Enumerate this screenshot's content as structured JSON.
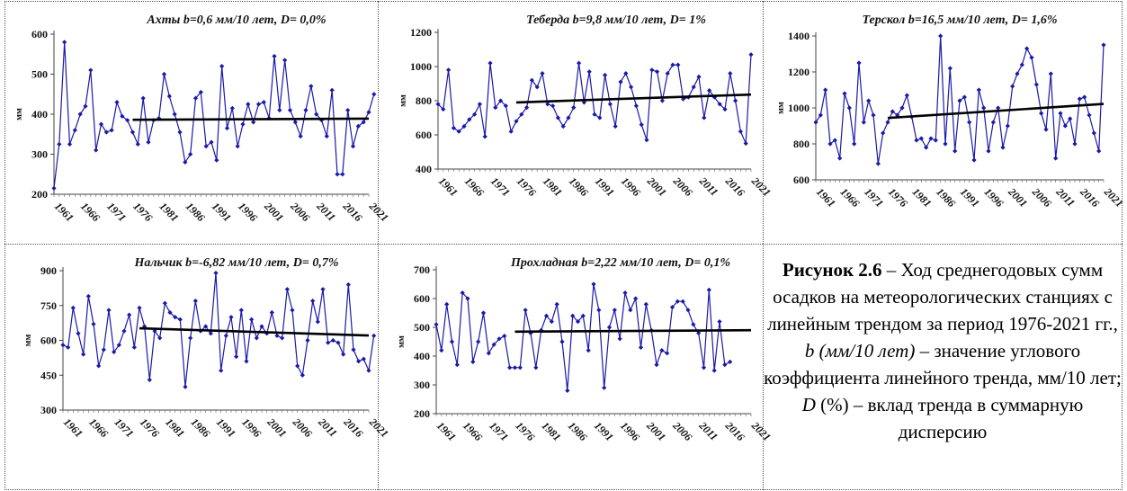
{
  "caption": {
    "label": "Рисунок 2.6",
    "dash": " – ",
    "text1": "Ход среднегодовых сумм осадков на метеорологических станциях с линейным трендом за период 1976-2021 гг., ",
    "b_symbol": "b",
    "b_unit": " (мм/10 лет)",
    "text2": " – значение углового коэффициента линейного тренда, мм/10 лет; ",
    "d_symbol": "D",
    "text3": " (%) – вклад тренда в суммарную дисперсию"
  },
  "colors": {
    "series": "#1a1aa8",
    "trend": "#000000"
  },
  "chart_data": [
    {
      "type": "line",
      "title": "Ахты  b=0,6 мм/10 лет, D= 0,0%",
      "ylabel": "мм",
      "ylim": [
        200,
        600
      ],
      "yticks": [
        200,
        300,
        400,
        500,
        600
      ],
      "xlim": [
        1961,
        2021
      ],
      "xticks": [
        1961,
        1966,
        1971,
        1976,
        1981,
        1986,
        1991,
        1996,
        2001,
        2006,
        2011,
        2016,
        2021
      ],
      "x_start": 1961,
      "values": [
        215,
        325,
        580,
        325,
        360,
        400,
        420,
        510,
        310,
        375,
        355,
        360,
        430,
        395,
        385,
        355,
        325,
        440,
        330,
        385,
        390,
        500,
        445,
        400,
        355,
        280,
        300,
        440,
        455,
        320,
        330,
        285,
        520,
        365,
        415,
        320,
        375,
        425,
        380,
        425,
        430,
        390,
        545,
        410,
        535,
        410,
        380,
        345,
        410,
        470,
        400,
        385,
        345,
        460,
        250,
        250,
        410,
        320,
        370,
        380,
        405,
        450
      ],
      "trend": {
        "x": [
          1976,
          2021
        ],
        "y": [
          386,
          389
        ]
      }
    },
    {
      "type": "line",
      "title": "Теберда  b=9,8 мм/10 лет, D= 1%",
      "ylabel": "мм",
      "ylim": [
        400,
        1200
      ],
      "yticks": [
        400,
        600,
        800,
        1000,
        1200
      ],
      "xlim": [
        1961,
        2021
      ],
      "xticks": [
        1961,
        1966,
        1971,
        1976,
        1981,
        1986,
        1991,
        1996,
        2001,
        2006,
        2011,
        2016,
        2021
      ],
      "x_start": 1961,
      "values": [
        780,
        750,
        980,
        640,
        620,
        650,
        690,
        720,
        780,
        590,
        1020,
        760,
        800,
        770,
        620,
        680,
        720,
        760,
        920,
        880,
        960,
        780,
        770,
        700,
        650,
        700,
        760,
        1020,
        790,
        970,
        720,
        700,
        950,
        780,
        650,
        910,
        960,
        880,
        770,
        660,
        570,
        980,
        970,
        800,
        960,
        1010,
        1010,
        810,
        820,
        880,
        940,
        700,
        860,
        820,
        780,
        750,
        960,
        800,
        620,
        550,
        1070
      ],
      "trend": {
        "x": [
          1976,
          2021
        ],
        "y": [
          790,
          836
        ]
      }
    },
    {
      "type": "line",
      "title": "Терскол b=16,5 мм/10 лет,  D= 1,6%",
      "ylabel": "мм",
      "ylim": [
        600,
        1400
      ],
      "yticks": [
        600,
        800,
        1000,
        1200,
        1400
      ],
      "xlim": [
        1961,
        2021
      ],
      "xticks": [
        1961,
        1966,
        1971,
        1976,
        1981,
        1986,
        1991,
        1996,
        2001,
        2006,
        2011,
        2016,
        2021
      ],
      "x_start": 1961,
      "values": [
        920,
        960,
        1100,
        800,
        820,
        720,
        1080,
        1000,
        800,
        1250,
        920,
        1040,
        960,
        690,
        860,
        920,
        980,
        960,
        1000,
        1070,
        950,
        820,
        830,
        780,
        830,
        820,
        1400,
        800,
        1220,
        760,
        1040,
        1060,
        920,
        710,
        1100,
        1000,
        760,
        920,
        1000,
        780,
        900,
        1120,
        1190,
        1240,
        1330,
        1280,
        1130,
        970,
        880,
        1190,
        720,
        970,
        900,
        940,
        800,
        1050,
        1060,
        960,
        860,
        760,
        1350
      ],
      "trend": {
        "x": [
          1976,
          2021
        ],
        "y": [
          944,
          1022
        ]
      }
    },
    {
      "type": "line",
      "title": "Нальчик   b=-6,82 мм/10 лет, D= 0,7%",
      "ylabel": "мм",
      "ylim": [
        300,
        900
      ],
      "yticks": [
        300,
        450,
        600,
        750,
        900
      ],
      "xlim": [
        1961,
        2021
      ],
      "xticks": [
        1961,
        1966,
        1971,
        1976,
        1981,
        1986,
        1991,
        1996,
        2001,
        2006,
        2011,
        2016,
        2021
      ],
      "x_start": 1961,
      "values": [
        580,
        570,
        740,
        630,
        540,
        790,
        670,
        490,
        560,
        730,
        550,
        580,
        640,
        710,
        570,
        740,
        660,
        430,
        640,
        610,
        760,
        720,
        700,
        690,
        400,
        610,
        770,
        640,
        660,
        630,
        890,
        470,
        620,
        700,
        530,
        730,
        510,
        690,
        610,
        660,
        630,
        720,
        620,
        610,
        820,
        730,
        490,
        450,
        600,
        770,
        680,
        820,
        590,
        600,
        590,
        540,
        840,
        560,
        510,
        520,
        470,
        620
      ],
      "trend": {
        "x": [
          1976,
          2021
        ],
        "y": [
          652,
          621
        ]
      }
    },
    {
      "type": "line",
      "title": "Прохладная   b=2,22 мм/10 лет, D= 0,1%",
      "ylabel": "мм",
      "ylim": [
        200,
        700
      ],
      "yticks": [
        200,
        300,
        400,
        500,
        600,
        700
      ],
      "xlim": [
        1961,
        2021
      ],
      "xticks": [
        1961,
        1966,
        1971,
        1976,
        1981,
        1986,
        1991,
        1996,
        2001,
        2006,
        2011,
        2016,
        2021
      ],
      "x_start": 1961,
      "values": [
        510,
        420,
        580,
        450,
        370,
        620,
        600,
        380,
        450,
        550,
        410,
        440,
        460,
        470,
        360,
        360,
        360,
        560,
        480,
        360,
        490,
        540,
        520,
        580,
        450,
        280,
        540,
        520,
        540,
        420,
        650,
        560,
        290,
        500,
        560,
        460,
        620,
        560,
        600,
        430,
        580,
        490,
        370,
        420,
        410,
        570,
        590,
        590,
        560,
        510,
        480,
        360,
        630,
        350,
        520,
        370,
        380
      ],
      "trend": {
        "x": [
          1976,
          2021
        ],
        "y": [
          485,
          490
        ]
      }
    }
  ]
}
